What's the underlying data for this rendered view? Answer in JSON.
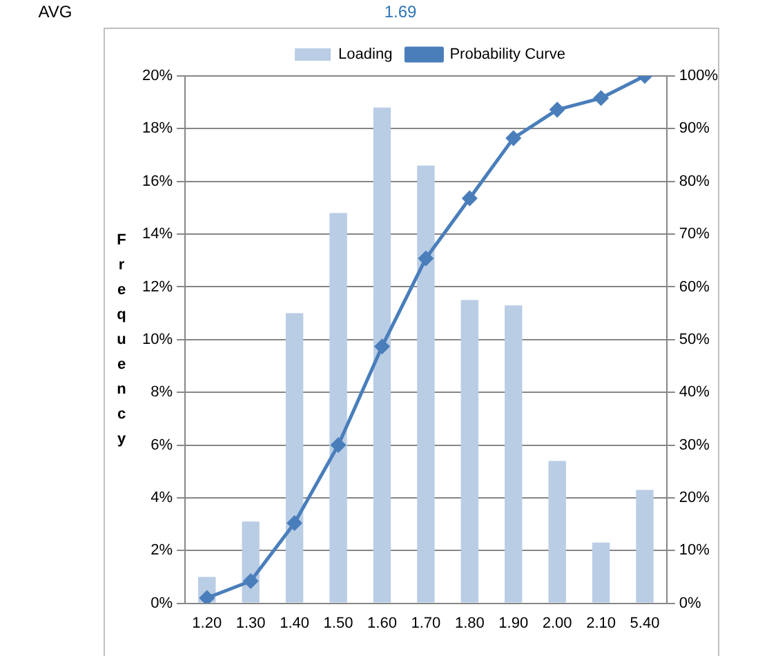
{
  "chart_data": {
    "type": "bar",
    "ylabel": "Frequency",
    "annotations": [
      "AVG",
      "1.69"
    ],
    "categories": [
      "1.20",
      "1.30",
      "1.40",
      "1.50",
      "1.60",
      "1.70",
      "1.80",
      "1.90",
      "2.00",
      "2.10",
      "5.40"
    ],
    "series": [
      {
        "name": "Loading",
        "color": "#b9cde5",
        "values": [
          1.0,
          3.1,
          11.0,
          14.8,
          18.8,
          16.6,
          11.5,
          11.3,
          5.4,
          2.3,
          4.3
        ]
      },
      {
        "name": "Probability Curve",
        "type": "line",
        "axis": "y2",
        "color": "#4a7ebb",
        "marker": "diamond",
        "values": [
          1.0,
          4.2,
          15.2,
          30.0,
          48.7,
          65.4,
          76.8,
          88.2,
          93.6,
          95.8,
          100
        ]
      }
    ],
    "ylim": [
      0,
      20
    ],
    "yticks": [
      {
        "value": 0,
        "label": "0%"
      },
      {
        "value": 2,
        "label": "2%"
      },
      {
        "value": 4,
        "label": "4%"
      },
      {
        "value": 6,
        "label": "6%"
      },
      {
        "value": 8,
        "label": "8%"
      },
      {
        "value": 10,
        "label": "10%"
      },
      {
        "value": 12,
        "label": "12%"
      },
      {
        "value": 14,
        "label": "14%"
      },
      {
        "value": 16,
        "label": "16%"
      },
      {
        "value": 18,
        "label": "18%"
      },
      {
        "value": 20,
        "label": "20%"
      }
    ],
    "y2lim": [
      0,
      100
    ],
    "y2ticks": [
      {
        "value": 0,
        "label": "0%"
      },
      {
        "value": 10,
        "label": "10%"
      },
      {
        "value": 20,
        "label": "20%"
      },
      {
        "value": 30,
        "label": "30%"
      },
      {
        "value": 40,
        "label": "40%"
      },
      {
        "value": 50,
        "label": "50%"
      },
      {
        "value": 60,
        "label": "60%"
      },
      {
        "value": 70,
        "label": "70%"
      },
      {
        "value": 80,
        "label": "80%"
      },
      {
        "value": 90,
        "label": "90%"
      },
      {
        "value": 100,
        "label": "100%"
      }
    ],
    "grid": "y",
    "legend": "top"
  }
}
